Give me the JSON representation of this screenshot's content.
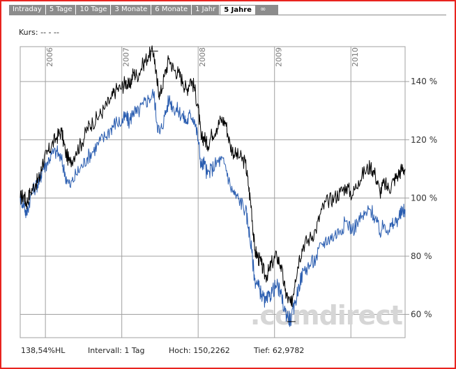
{
  "tabs": [
    {
      "label": "Intraday",
      "active": false
    },
    {
      "label": "5 Tage",
      "active": false
    },
    {
      "label": "10 Tage",
      "active": false
    },
    {
      "label": "3 Monate",
      "active": false
    },
    {
      "label": "6 Monate",
      "active": false
    },
    {
      "label": "1 Jahr",
      "active": false
    },
    {
      "label": "5 Jahre",
      "active": true
    },
    {
      "label": "∞",
      "active": false
    }
  ],
  "kurs_label": "Kurs: -- - --",
  "watermark": ".comdirect",
  "footer": {
    "change": "138,54%HL",
    "interval": "Intervall: 1 Tag",
    "high": "Hoch: 150,2262",
    "low": "Tief: 62,9782"
  },
  "colors": {
    "series_main": "#000000",
    "series_compare": "#2a5db0",
    "frame": "#e8231f",
    "grid": "#a0a0a0"
  },
  "chart_data": {
    "type": "line",
    "xlabel": "",
    "ylabel": "",
    "x_ticks": [
      "2006",
      "2007",
      "2008",
      "2009",
      "2010"
    ],
    "y_ticks": [
      "60 %",
      "80 %",
      "100 %",
      "120 %",
      "140 %"
    ],
    "ylim": [
      52,
      152
    ],
    "xlim": [
      2005.67,
      2010.71
    ],
    "grid": true,
    "legend": "none",
    "series": [
      {
        "values": [
          [
            2005.67,
            100
          ],
          [
            2005.72,
            101
          ],
          [
            2005.75,
            98
          ],
          [
            2005.8,
            102
          ],
          [
            2005.87,
            105
          ],
          [
            2005.93,
            107
          ],
          [
            2005.96,
            112
          ],
          [
            2006.02,
            115
          ],
          [
            2006.08,
            118
          ],
          [
            2006.15,
            121
          ],
          [
            2006.21,
            123
          ],
          [
            2006.26,
            116
          ],
          [
            2006.32,
            112
          ],
          [
            2006.4,
            116
          ],
          [
            2006.48,
            119
          ],
          [
            2006.55,
            124
          ],
          [
            2006.62,
            126
          ],
          [
            2006.7,
            128
          ],
          [
            2006.78,
            131
          ],
          [
            2006.86,
            134
          ],
          [
            2006.92,
            137
          ],
          [
            2007.0,
            138
          ],
          [
            2007.05,
            140
          ],
          [
            2007.1,
            138
          ],
          [
            2007.15,
            143
          ],
          [
            2007.2,
            142
          ],
          [
            2007.28,
            146
          ],
          [
            2007.35,
            149
          ],
          [
            2007.42,
            150
          ],
          [
            2007.46,
            140
          ],
          [
            2007.5,
            135
          ],
          [
            2007.56,
            142
          ],
          [
            2007.62,
            148
          ],
          [
            2007.68,
            144
          ],
          [
            2007.74,
            143
          ],
          [
            2007.8,
            140
          ],
          [
            2007.85,
            137
          ],
          [
            2007.9,
            141
          ],
          [
            2007.95,
            138
          ],
          [
            2008.0,
            131
          ],
          [
            2008.04,
            120
          ],
          [
            2008.08,
            121
          ],
          [
            2008.12,
            118
          ],
          [
            2008.18,
            122
          ],
          [
            2008.24,
            124
          ],
          [
            2008.3,
            127
          ],
          [
            2008.36,
            126
          ],
          [
            2008.42,
            118
          ],
          [
            2008.48,
            115
          ],
          [
            2008.55,
            114
          ],
          [
            2008.62,
            112
          ],
          [
            2008.66,
            104
          ],
          [
            2008.7,
            96
          ],
          [
            2008.74,
            82
          ],
          [
            2008.78,
            80
          ],
          [
            2008.83,
            77
          ],
          [
            2008.88,
            73
          ],
          [
            2008.93,
            75
          ],
          [
            2008.97,
            78
          ],
          [
            2009.03,
            80
          ],
          [
            2009.08,
            77
          ],
          [
            2009.14,
            68
          ],
          [
            2009.18,
            65
          ],
          [
            2009.22,
            63
          ],
          [
            2009.27,
            72
          ],
          [
            2009.32,
            79
          ],
          [
            2009.38,
            84
          ],
          [
            2009.46,
            86
          ],
          [
            2009.54,
            89
          ],
          [
            2009.62,
            96
          ],
          [
            2009.7,
            99
          ],
          [
            2009.78,
            100
          ],
          [
            2009.86,
            102
          ],
          [
            2009.94,
            104
          ],
          [
            2010.02,
            101
          ],
          [
            2010.1,
            106
          ],
          [
            2010.18,
            109
          ],
          [
            2010.26,
            111
          ],
          [
            2010.32,
            108
          ],
          [
            2010.38,
            102
          ],
          [
            2010.44,
            105
          ],
          [
            2010.5,
            103
          ],
          [
            2010.56,
            106
          ],
          [
            2010.62,
            108
          ],
          [
            2010.67,
            110
          ],
          [
            2010.71,
            110
          ]
        ]
      },
      {
        "values": [
          [
            2005.67,
            100
          ],
          [
            2005.72,
            98
          ],
          [
            2005.75,
            94
          ],
          [
            2005.8,
            100
          ],
          [
            2005.87,
            104
          ],
          [
            2005.93,
            106
          ],
          [
            2005.96,
            110
          ],
          [
            2006.02,
            112
          ],
          [
            2006.08,
            115
          ],
          [
            2006.15,
            116
          ],
          [
            2006.21,
            113
          ],
          [
            2006.26,
            108
          ],
          [
            2006.32,
            104
          ],
          [
            2006.4,
            108
          ],
          [
            2006.48,
            111
          ],
          [
            2006.55,
            114
          ],
          [
            2006.62,
            116
          ],
          [
            2006.7,
            119
          ],
          [
            2006.78,
            121
          ],
          [
            2006.86,
            124
          ],
          [
            2006.92,
            126
          ],
          [
            2007.0,
            126
          ],
          [
            2007.05,
            128
          ],
          [
            2007.1,
            126
          ],
          [
            2007.15,
            130
          ],
          [
            2007.2,
            129
          ],
          [
            2007.28,
            132
          ],
          [
            2007.35,
            134
          ],
          [
            2007.42,
            136
          ],
          [
            2007.46,
            126
          ],
          [
            2007.5,
            122
          ],
          [
            2007.56,
            128
          ],
          [
            2007.62,
            134
          ],
          [
            2007.68,
            131
          ],
          [
            2007.74,
            130
          ],
          [
            2007.8,
            128
          ],
          [
            2007.85,
            126
          ],
          [
            2007.9,
            129
          ],
          [
            2007.95,
            127
          ],
          [
            2008.0,
            120
          ],
          [
            2008.04,
            111
          ],
          [
            2008.08,
            112
          ],
          [
            2008.12,
            108
          ],
          [
            2008.18,
            110
          ],
          [
            2008.24,
            112
          ],
          [
            2008.3,
            113
          ],
          [
            2008.36,
            111
          ],
          [
            2008.42,
            104
          ],
          [
            2008.48,
            101
          ],
          [
            2008.55,
            99
          ],
          [
            2008.62,
            96
          ],
          [
            2008.66,
            90
          ],
          [
            2008.7,
            82
          ],
          [
            2008.74,
            72
          ],
          [
            2008.78,
            70
          ],
          [
            2008.83,
            67
          ],
          [
            2008.88,
            64
          ],
          [
            2008.93,
            66
          ],
          [
            2008.97,
            68
          ],
          [
            2009.03,
            70
          ],
          [
            2009.08,
            67
          ],
          [
            2009.14,
            61
          ],
          [
            2009.18,
            59
          ],
          [
            2009.22,
            58
          ],
          [
            2009.27,
            64
          ],
          [
            2009.32,
            70
          ],
          [
            2009.38,
            75
          ],
          [
            2009.46,
            77
          ],
          [
            2009.54,
            79
          ],
          [
            2009.62,
            84
          ],
          [
            2009.7,
            86
          ],
          [
            2009.78,
            87
          ],
          [
            2009.86,
            89
          ],
          [
            2009.94,
            92
          ],
          [
            2010.02,
            89
          ],
          [
            2010.1,
            92
          ],
          [
            2010.18,
            94
          ],
          [
            2010.26,
            96
          ],
          [
            2010.32,
            93
          ],
          [
            2010.38,
            88
          ],
          [
            2010.44,
            91
          ],
          [
            2010.5,
            89
          ],
          [
            2010.56,
            91
          ],
          [
            2010.62,
            93
          ],
          [
            2010.67,
            95
          ],
          [
            2010.71,
            96
          ]
        ]
      }
    ]
  }
}
